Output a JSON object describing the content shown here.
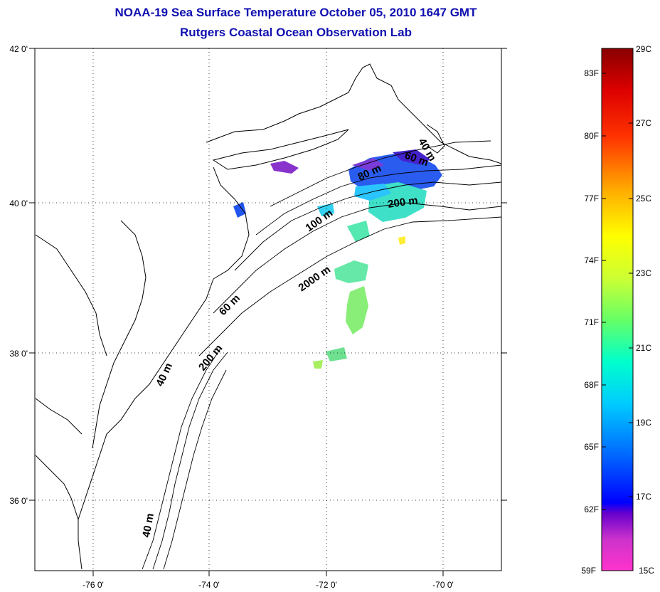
{
  "title": {
    "line1": "NOAA-19 Sea Surface Temperature October 05, 2010 1647 GMT",
    "line2": "Rutgers Coastal Ocean Observation Lab"
  },
  "map": {
    "lat_ticks": [
      "42 0'",
      "40 0'",
      "38 0'",
      "36 0'"
    ],
    "lon_ticks": [
      "-76 0'",
      "-74 0'",
      "-72 0'",
      "-70 0'"
    ],
    "contour_labels": [
      "40 m",
      "60 m",
      "80 m",
      "100 m",
      "200 m",
      "2000 m",
      "60 m",
      "200 m",
      "40 m",
      "40 m"
    ]
  },
  "colorbar": {
    "fahrenheit": [
      "83F",
      "80F",
      "77F",
      "74F",
      "71F",
      "68F",
      "65F",
      "62F",
      "59F"
    ],
    "celsius": [
      "29C",
      "27C",
      "25C",
      "23C",
      "21C",
      "19C",
      "17C",
      "15C"
    ]
  },
  "colors": {
    "title": "#1010b0",
    "land_outline": "#000000"
  }
}
